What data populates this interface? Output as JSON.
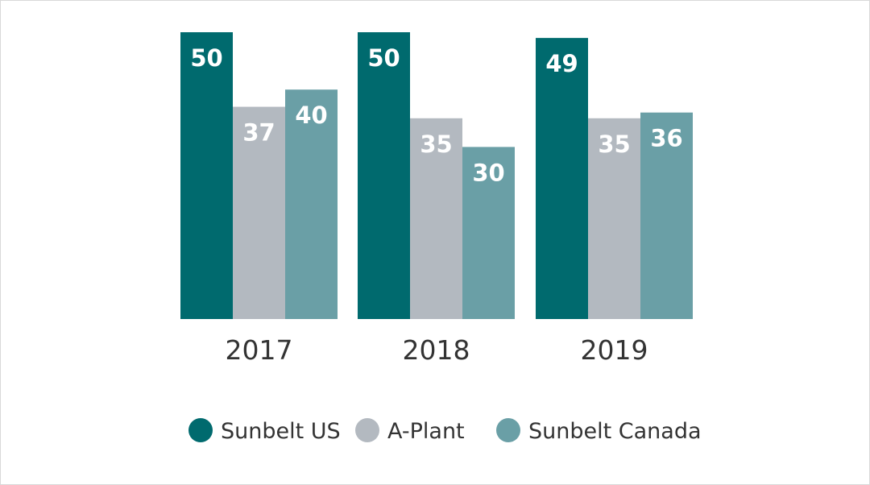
{
  "chart_data": {
    "type": "bar",
    "title": "",
    "xlabel": "",
    "ylabel": "",
    "ylim": [
      0,
      50
    ],
    "grid": false,
    "legend_position": "bottom",
    "categories": [
      "2017",
      "2018",
      "2019"
    ],
    "series": [
      {
        "name": "Sunbelt US",
        "color": "#006a6e",
        "values": [
          50,
          50,
          49
        ]
      },
      {
        "name": "A-Plant",
        "color": "#b3b9c0",
        "values": [
          37,
          35,
          35
        ]
      },
      {
        "name": "Sunbelt Canada",
        "color": "#6a9fa6",
        "values": [
          40,
          30,
          36
        ]
      }
    ]
  }
}
